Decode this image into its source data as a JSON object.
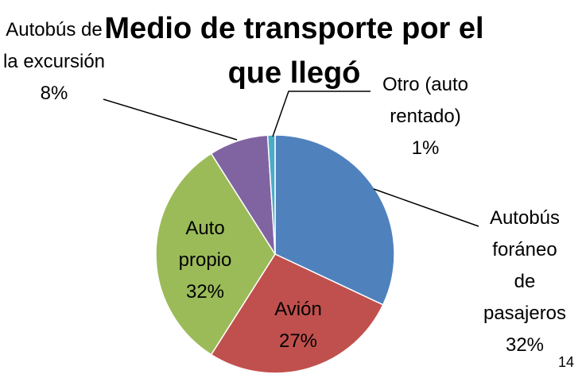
{
  "chart_data": {
    "type": "pie",
    "title": "Medio de transporte por el que llegó",
    "categories": [
      "Autobús foráneo de pasajeros",
      "Avión",
      "Auto propio",
      "Autobús de la excursión",
      "Otro (auto rentado)"
    ],
    "values": [
      32,
      27,
      32,
      8,
      1
    ],
    "value_labels": [
      "32%",
      "27%",
      "32%",
      "8%",
      "1%"
    ],
    "colors": [
      "#4f81bd",
      "#c0504d",
      "#9bbb59",
      "#8064a2",
      "#4bacc6"
    ]
  },
  "page_number": "14"
}
